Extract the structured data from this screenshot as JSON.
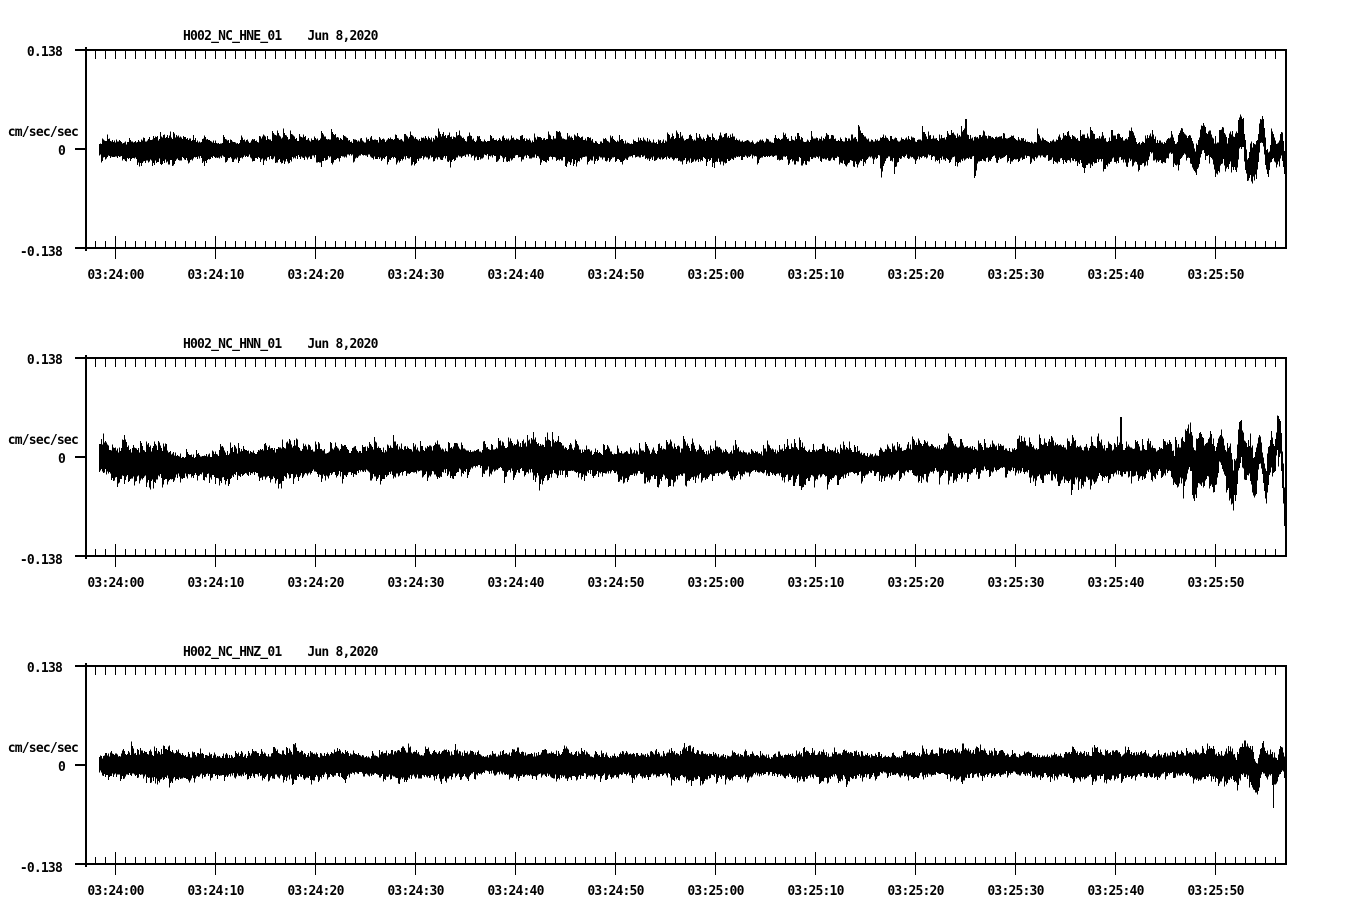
{
  "colors": {
    "background": "#ffffff",
    "foreground": "#000000"
  },
  "chart_data": [
    {
      "type": "line",
      "title": "H002_NC_HNE_01",
      "date": "Jun 8,2020",
      "ylabel": "cm/sec/sec",
      "y_tick_labels": [
        "0.138",
        "0",
        "-0.138"
      ],
      "ylim": [
        -0.138,
        0.138
      ],
      "x_tick_labels": [
        "03:24:00",
        "03:24:10",
        "03:24:20",
        "03:24:30",
        "03:24:40",
        "03:24:50",
        "03:25:00",
        "03:25:10",
        "03:25:20",
        "03:25:30",
        "03:25:40",
        "03:25:50"
      ],
      "x_window": {
        "start": "03:23:57",
        "end": "03:25:57",
        "seconds": 120
      },
      "series": {
        "name": "HNE",
        "units": "cm/sec/sec",
        "description": "continuous background noise ~±0.012, a few spikes to ±0.04 after 03:25:05, amplitude growing to ~±0.05 in the final 15 s",
        "core_halfwidth": 0.01185,
        "hair_length": 0.01394,
        "center_offset": 0,
        "wander": 0.0017,
        "hf_ramp_start": 0.6,
        "hf_ramp_gain": 0.45,
        "tail_start": 0.76,
        "tail_amp": 0.05,
        "spike_window": [
          0.62,
          0.84
        ],
        "spikes": [
          {
            "t": 85,
            "amp": 0.042
          }
        ],
        "seed": 101
      }
    },
    {
      "type": "line",
      "title": "H002_NC_HNN_01",
      "date": "Jun 8,2020",
      "ylabel": "cm/sec/sec",
      "y_tick_labels": [
        "0.138",
        "0",
        "-0.138"
      ],
      "ylim": [
        -0.138,
        0.138
      ],
      "x_tick_labels": [
        "03:24:00",
        "03:24:10",
        "03:24:20",
        "03:24:30",
        "03:24:40",
        "03:24:50",
        "03:25:00",
        "03:25:10",
        "03:25:20",
        "03:25:30",
        "03:25:40",
        "03:25:50"
      ],
      "x_window": {
        "start": "03:23:57",
        "end": "03:25:57",
        "seconds": 120
      },
      "series": {
        "name": "HNN",
        "units": "cm/sec/sec",
        "description": "noise band ~±0.015 centered slightly below zero with slow drift, spike ~+0.056 near 03:25:40, growing to ~±0.065 in final 15 s",
        "core_halfwidth": 0.01533,
        "hair_length": 0.02091,
        "center_offset": -0.0063,
        "wander": 0.005,
        "hf_ramp_start": 0.65,
        "hf_ramp_gain": 0.5,
        "tail_start": 0.79,
        "tail_amp": 0.063,
        "spike_window": null,
        "spikes": [
          {
            "t": 100.5,
            "amp": 0.056
          }
        ],
        "seed": 202
      }
    },
    {
      "type": "line",
      "title": "H002_NC_HNZ_01",
      "date": "Jun 8,2020",
      "ylabel": "cm/sec/sec",
      "y_tick_labels": [
        "0.138",
        "0",
        "-0.138"
      ],
      "ylim": [
        -0.138,
        0.138
      ],
      "x_tick_labels": [
        "03:24:00",
        "03:24:10",
        "03:24:20",
        "03:24:30",
        "03:24:40",
        "03:24:50",
        "03:25:00",
        "03:25:10",
        "03:25:20",
        "03:25:30",
        "03:25:40",
        "03:25:50"
      ],
      "x_window": {
        "start": "03:23:57",
        "end": "03:25:57",
        "seconds": 120
      },
      "series": {
        "name": "HNZ",
        "units": "cm/sec/sec",
        "description": "nearly uniform noise band ~±0.015 throughout, slight growth after 03:25:45 with a down spike to ~-0.060 near 03:25:53",
        "core_halfwidth": 0.0146,
        "hair_length": 0.0125,
        "center_offset": 0,
        "wander": 0.0016,
        "hf_ramp_start": 0.85,
        "hf_ramp_gain": 0.3,
        "tail_start": 0.885,
        "tail_amp": 0.032,
        "spike_window": null,
        "spikes": [
          {
            "t": 84.7,
            "amp": 0.03
          },
          {
            "t": 112.9,
            "amp": 0.034
          },
          {
            "t": 115.75,
            "amp": -0.06
          }
        ],
        "seed": 303
      }
    }
  ]
}
